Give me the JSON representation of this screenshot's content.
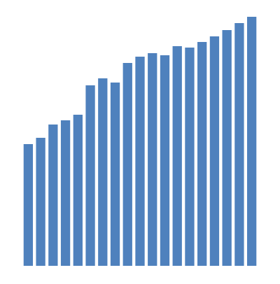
{
  "chart_data": {
    "type": "bar",
    "values": [
      174,
      183,
      202,
      208,
      216,
      258,
      268,
      262,
      290,
      299,
      304,
      301,
      314,
      312,
      320,
      328,
      337,
      347,
      356
    ],
    "color": "#4f81bd",
    "ylim": [
      0,
      356
    ]
  }
}
